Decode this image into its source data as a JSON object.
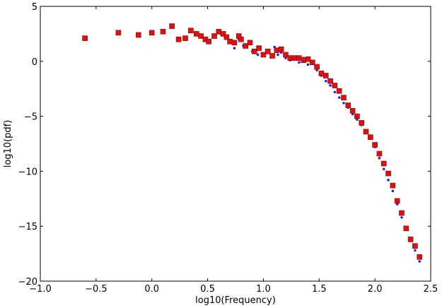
{
  "chart_data": {
    "type": "scatter",
    "title": "",
    "xlabel": "log10(Frequency)",
    "ylabel": "log10(pdf)",
    "xlim": [
      -1.0,
      2.5
    ],
    "ylim": [
      -20,
      5
    ],
    "xticks": [
      -1.0,
      -0.5,
      0.0,
      0.5,
      1.0,
      1.5,
      2.0,
      2.5
    ],
    "xtick_labels": [
      "−1.0",
      "−0.5",
      "0.0",
      "0.5",
      "1.0",
      "1.5",
      "2.0",
      "2.5"
    ],
    "yticks": [
      5,
      0,
      -5,
      -10,
      -15,
      -20
    ],
    "ytick_labels": [
      "5",
      "0",
      "−5",
      "−10",
      "−15",
      "−20"
    ],
    "grid": false,
    "series": [
      {
        "marker": "dot",
        "color": "#2222ee",
        "x": [
          0.62,
          0.66,
          0.7,
          0.74,
          0.78,
          0.82,
          0.85,
          0.9,
          0.95,
          1.0,
          1.05,
          1.1,
          1.13,
          1.16,
          1.2,
          1.24,
          1.28,
          1.32,
          1.36,
          1.4,
          1.44,
          1.48,
          1.52,
          1.56,
          1.6,
          1.64,
          1.68,
          1.72,
          1.76,
          1.8,
          1.84,
          1.88,
          1.92,
          1.96,
          2.0,
          2.04,
          2.08,
          2.12,
          2.16,
          2.2,
          2.24,
          2.28,
          2.32,
          2.36,
          2.4
        ],
        "y": [
          2.5,
          2.2,
          1.8,
          1.2,
          2.0,
          1.4,
          1.5,
          0.9,
          0.6,
          0.5,
          0.9,
          1.3,
          0.6,
          0.8,
          0.3,
          0.1,
          0.4,
          -0.1,
          0.3,
          -0.3,
          -0.1,
          -0.8,
          -1.3,
          -1.8,
          -2.2,
          -2.8,
          -3.3,
          -3.8,
          -4.2,
          -4.8,
          -5.3,
          -5.8,
          -6.3,
          -7.0,
          -7.8,
          -8.8,
          -9.8,
          -10.8,
          -11.8,
          -13.0,
          -14.2,
          -15.3,
          -16.3,
          -17.2,
          -18.2
        ]
      },
      {
        "marker": "square",
        "color": "#dd1111",
        "x": [
          -0.6,
          -0.3,
          -0.12,
          0.0,
          0.1,
          0.18,
          0.24,
          0.3,
          0.35,
          0.4,
          0.44,
          0.48,
          0.51,
          0.56,
          0.6,
          0.64,
          0.67,
          0.7,
          0.74,
          0.78,
          0.8,
          0.84,
          0.88,
          0.92,
          0.96,
          1.0,
          1.04,
          1.08,
          1.12,
          1.16,
          1.2,
          1.24,
          1.28,
          1.32,
          1.36,
          1.4,
          1.44,
          1.48,
          1.52,
          1.56,
          1.6,
          1.64,
          1.68,
          1.72,
          1.76,
          1.8,
          1.84,
          1.88,
          1.92,
          1.96,
          2.0,
          2.04,
          2.08,
          2.12,
          2.16,
          2.2,
          2.24,
          2.28,
          2.32,
          2.36,
          2.4
        ],
        "y": [
          2.1,
          2.6,
          2.4,
          2.6,
          2.7,
          3.2,
          2.0,
          2.1,
          2.8,
          2.5,
          2.3,
          2.0,
          1.8,
          2.3,
          2.7,
          2.5,
          2.2,
          1.8,
          1.7,
          2.3,
          2.0,
          1.4,
          1.7,
          0.9,
          1.2,
          0.6,
          0.9,
          0.5,
          1.0,
          1.1,
          0.6,
          0.3,
          0.3,
          0.3,
          0.1,
          0.2,
          -0.1,
          -0.5,
          -1.1,
          -1.3,
          -1.8,
          -2.2,
          -2.7,
          -3.3,
          -4.0,
          -4.5,
          -5.0,
          -5.6,
          -6.4,
          -6.9,
          -7.6,
          -8.4,
          -9.3,
          -10.2,
          -11.3,
          -12.7,
          -13.8,
          -15.2,
          -16.2,
          -16.8,
          -17.8
        ]
      }
    ]
  }
}
